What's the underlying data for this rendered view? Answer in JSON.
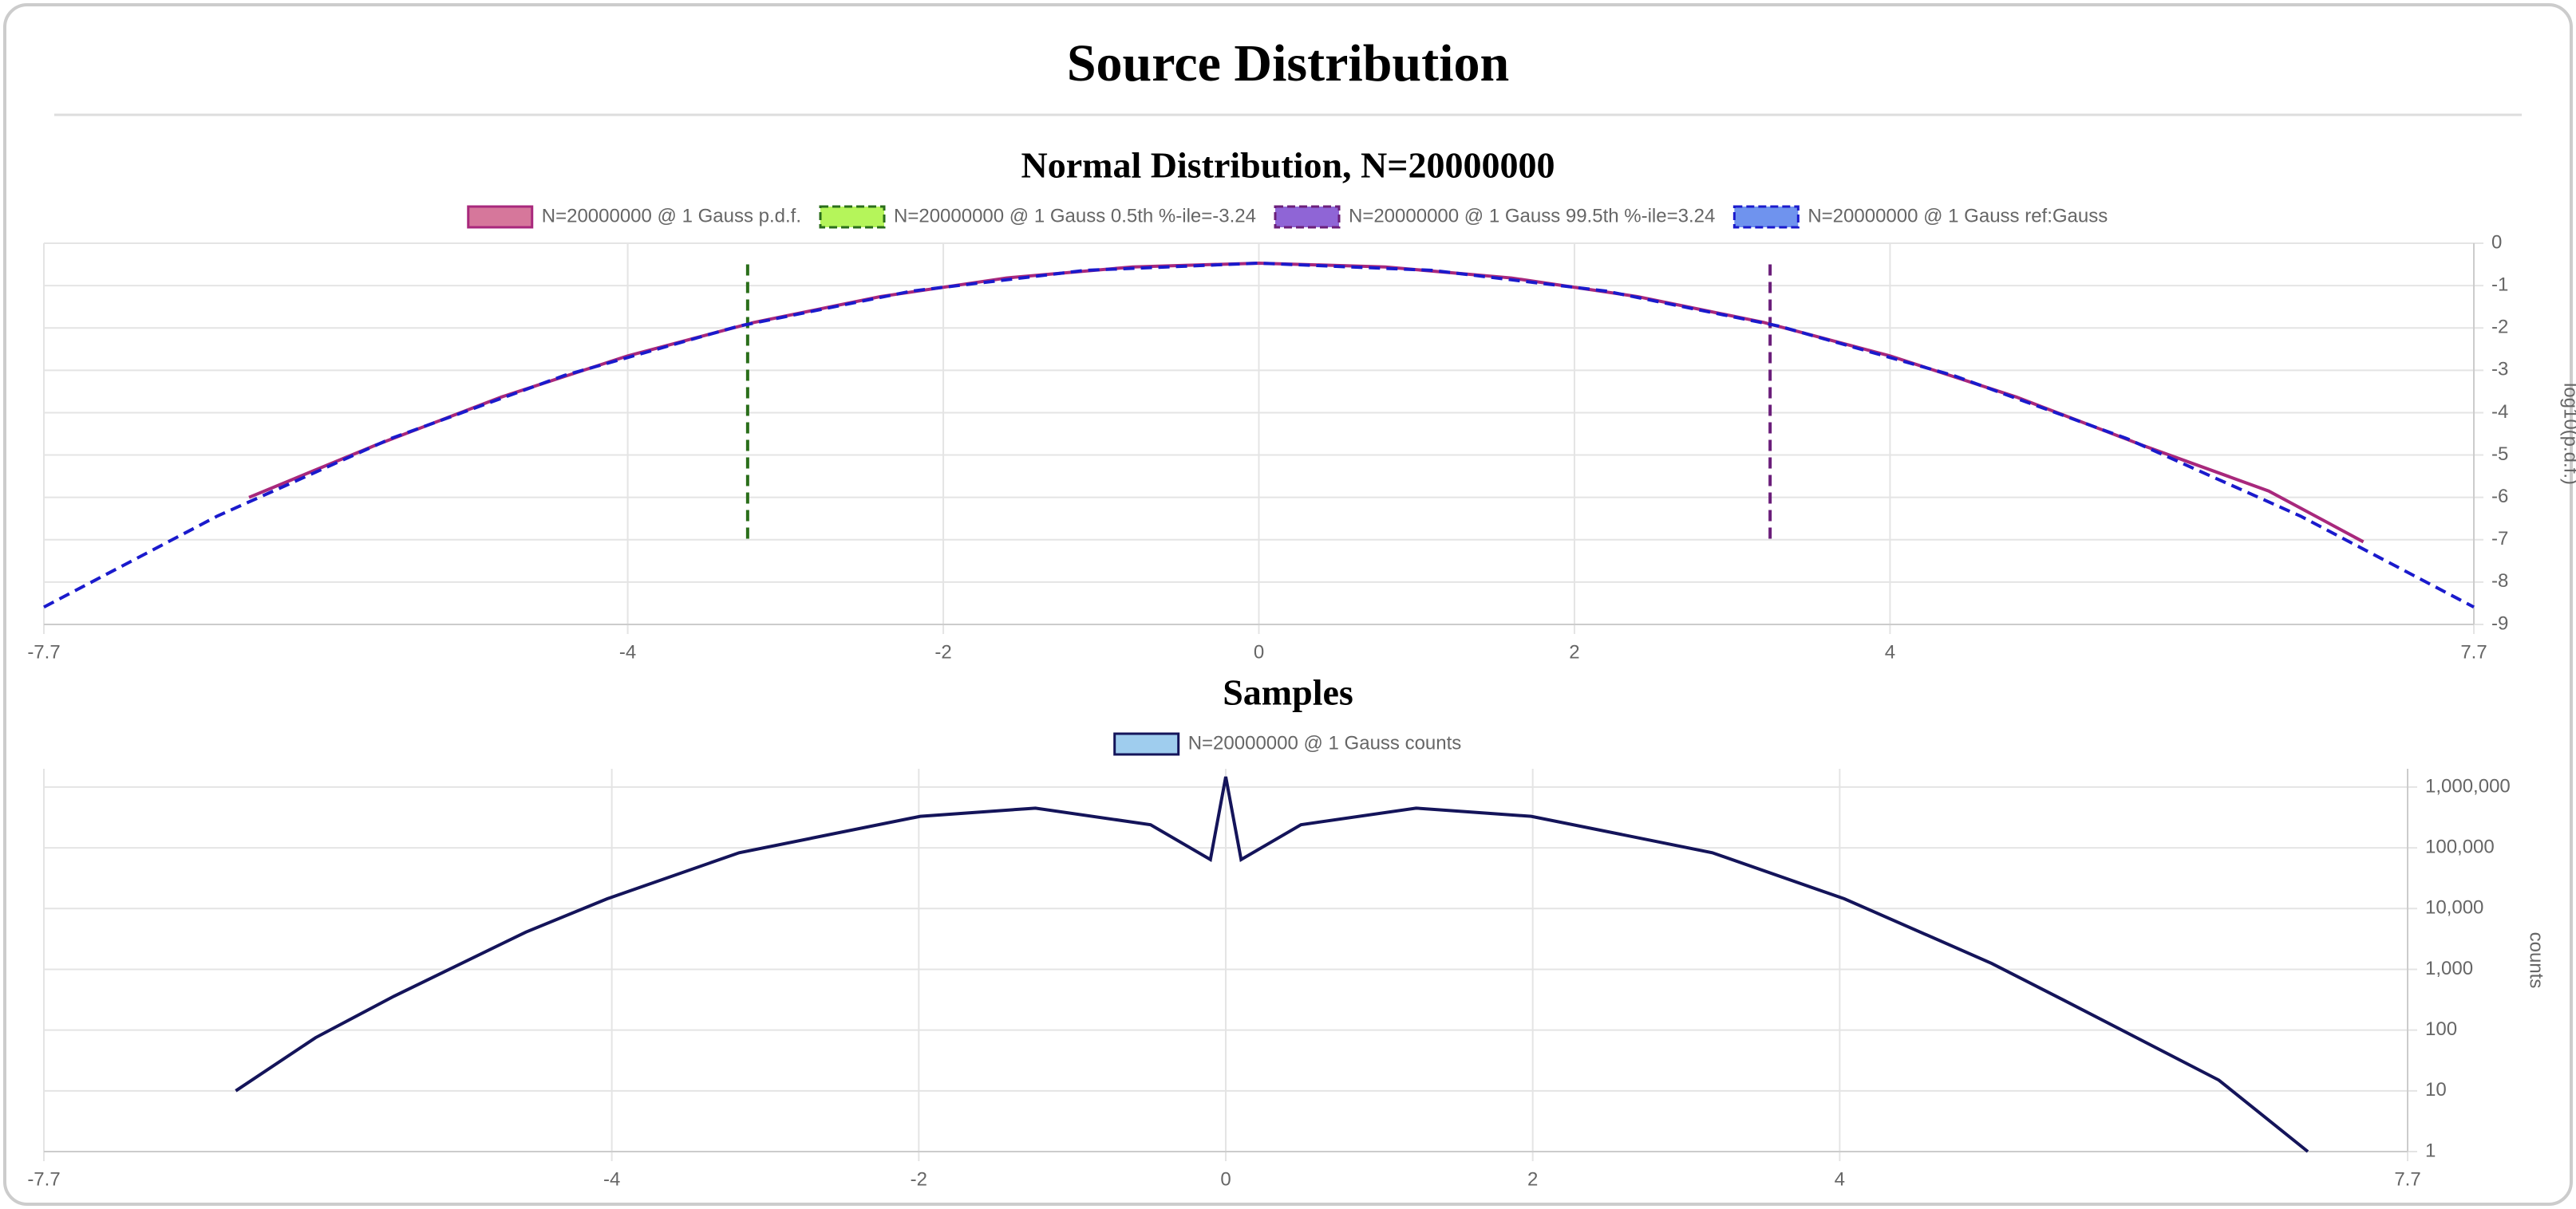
{
  "header": {
    "title": "Source Distribution"
  },
  "chart_data": [
    {
      "type": "line",
      "title": "Normal Distribution, N=20000000",
      "y_label": "log10(p.d.f.)",
      "xlim": [
        -7.7,
        7.7
      ],
      "xticks": [
        -7.7,
        -4,
        -2,
        0,
        2,
        4,
        7.7
      ],
      "ylim": [
        -9,
        0
      ],
      "yticks": [
        0,
        -1,
        -2,
        -3,
        -4,
        -5,
        -6,
        -7,
        -8,
        -9
      ],
      "grid": true,
      "log_y": false,
      "series": [
        {
          "name": "N=20000000 @ 1 Gauss p.d.f.",
          "color": "#a8287c",
          "legend_fill": "#d6779b",
          "dash": false,
          "x": [
            -6.4,
            -5.6,
            -4.8,
            -4,
            -3.2,
            -2.4,
            -1.6,
            -0.8,
            0,
            0.8,
            1.6,
            2.4,
            3.2,
            4,
            4.8,
            5.6,
            6.4,
            7.0
          ],
          "values": [
            -6.0,
            -4.77,
            -3.63,
            -2.66,
            -1.87,
            -1.26,
            -0.82,
            -0.56,
            -0.47,
            -0.56,
            -0.82,
            -1.26,
            -1.87,
            -2.66,
            -3.63,
            -4.77,
            -5.85,
            -7.05
          ]
        },
        {
          "name": "N=20000000 @ 1 Gauss 0.5th %-ile=-3.24",
          "color": "#2a6e1a",
          "legend_fill": "#b5f55a",
          "dash": true,
          "x": [
            -3.24,
            -3.24
          ],
          "values": [
            -0.5,
            -7.1
          ]
        },
        {
          "name": "N=20000000 @ 1 Gauss 99.5th %-ile=3.24",
          "color": "#6b1f7a",
          "legend_fill": "#8f65d6",
          "dash": true,
          "x": [
            3.24,
            3.24
          ],
          "values": [
            -0.5,
            -7.1
          ]
        },
        {
          "name": "N=20000000 @ 1 Gauss ref:Gauss",
          "color": "#1a1acc",
          "legend_fill": "#6f93ee",
          "dash": true,
          "x": [
            -7.7,
            -6.6,
            -5.5,
            -4.4,
            -3.3,
            -2.2,
            -1.1,
            0,
            1.1,
            2.2,
            3.3,
            4.4,
            5.5,
            6.6,
            7.7
          ],
          "values": [
            -8.59,
            -6.44,
            -4.61,
            -3.12,
            -1.96,
            -1.13,
            -0.64,
            -0.47,
            -0.64,
            -1.13,
            -1.96,
            -3.12,
            -4.61,
            -6.44,
            -8.59
          ]
        }
      ]
    },
    {
      "type": "line",
      "title": "Samples",
      "y_label": "counts",
      "xlim": [
        -7.7,
        7.7
      ],
      "xticks": [
        -7.7,
        -4,
        -2,
        0,
        2,
        4,
        7.7
      ],
      "ylim": [
        1,
        2000000
      ],
      "log_y": true,
      "grid": true,
      "yticks": [
        {
          "value": 1000000,
          "label": "1,000,000"
        },
        {
          "value": 100000,
          "label": "100,000"
        },
        {
          "value": 10000,
          "label": "10,000"
        },
        {
          "value": 1000,
          "label": "1,000"
        },
        100,
        10,
        1
      ],
      "series": [
        {
          "name": "N=20000000 @ 1 Gauss counts",
          "color": "#14145a",
          "legend_fill": "#9fcdee",
          "dash": false,
          "x": [
            -6.45,
            -5.93,
            -5.42,
            -4.56,
            -4.03,
            -3.17,
            -1.99,
            -1.24,
            -0.49,
            -0.1,
            0,
            0.1,
            0.49,
            1.24,
            1.99,
            3.17,
            4.03,
            4.99,
            5.45,
            6.47,
            7.05
          ],
          "values": [
            10,
            75,
            360,
            4100,
            14500,
            83000,
            330000,
            450000,
            240000,
            64000,
            1480000,
            64000,
            240000,
            450000,
            330000,
            83000,
            14500,
            1250,
            320,
            15,
            1
          ]
        }
      ]
    }
  ]
}
